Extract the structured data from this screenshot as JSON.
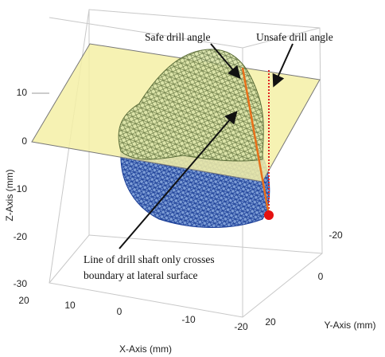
{
  "annotations": {
    "safe": "Safe drill angle",
    "unsafe": "Unsafe drill angle",
    "shaft": [
      "Line of drill shaft only crosses",
      "boundary at lateral surface"
    ]
  },
  "axes": {
    "x": {
      "label": "X-Axis (mm)",
      "ticks": [
        "20",
        "10",
        "0",
        "-10",
        "-20"
      ]
    },
    "y": {
      "label": "Y-Axis (mm)",
      "ticks": [
        "-20",
        "0",
        "20"
      ]
    },
    "z": {
      "label": "Z-Axis (mm)",
      "ticks": [
        "10",
        "0",
        "-10",
        "-20",
        "-30"
      ]
    }
  }
}
